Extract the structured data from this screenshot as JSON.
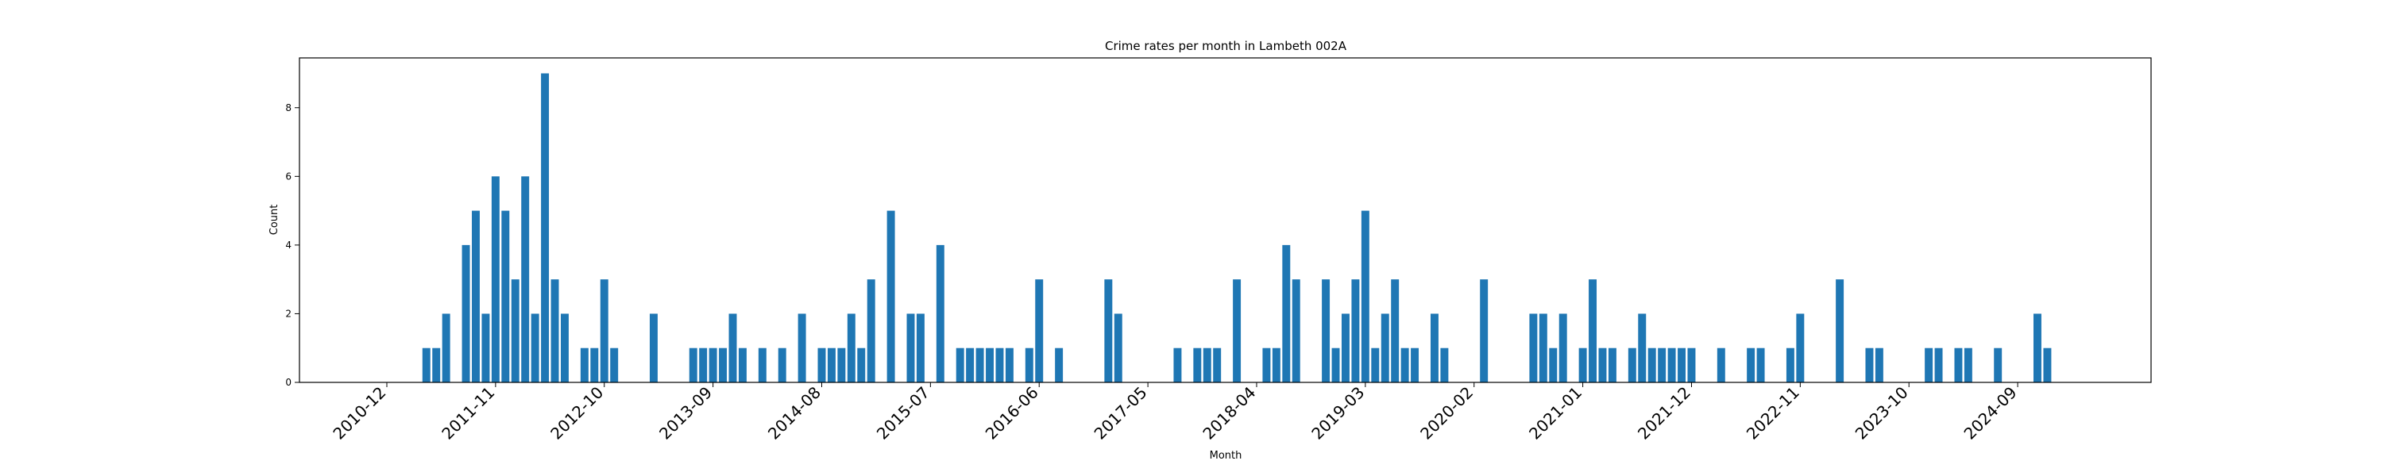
{
  "chart_data": {
    "type": "bar",
    "title": "Crime rates per month in Lambeth 002A",
    "xlabel": "Month",
    "ylabel": "Count",
    "ylim": [
      0,
      9.45
    ],
    "y_ticks": [
      0,
      2,
      4,
      6,
      8
    ],
    "x_ticks": [
      "2010-12",
      "2011-11",
      "2012-10",
      "2013-09",
      "2014-08",
      "2015-07",
      "2016-06",
      "2017-05",
      "2018-04",
      "2019-03",
      "2020-02",
      "2021-01",
      "2021-12",
      "2022-11",
      "2023-10",
      "2024-09"
    ],
    "grid": false,
    "color": "#1f77b4",
    "categories": [
      "2011-04",
      "2011-05",
      "2011-06",
      "2011-08",
      "2011-09",
      "2011-10",
      "2011-11",
      "2011-12",
      "2012-01",
      "2012-02",
      "2012-03",
      "2012-04",
      "2012-05",
      "2012-06",
      "2012-08",
      "2012-09",
      "2012-10",
      "2012-11",
      "2013-03",
      "2013-07",
      "2013-08",
      "2013-09",
      "2013-10",
      "2013-11",
      "2013-12",
      "2014-02",
      "2014-04",
      "2014-06",
      "2014-08",
      "2014-09",
      "2014-10",
      "2014-11",
      "2014-12",
      "2015-01",
      "2015-03",
      "2015-05",
      "2015-06",
      "2015-08",
      "2015-10",
      "2015-11",
      "2015-12",
      "2016-01",
      "2016-02",
      "2016-03",
      "2016-05",
      "2016-06",
      "2016-08",
      "2017-01",
      "2017-02",
      "2017-08",
      "2017-10",
      "2017-11",
      "2017-12",
      "2018-02",
      "2018-05",
      "2018-06",
      "2018-07",
      "2018-08",
      "2018-11",
      "2018-12",
      "2019-01",
      "2019-02",
      "2019-03",
      "2019-04",
      "2019-05",
      "2019-06",
      "2019-07",
      "2019-08",
      "2019-10",
      "2019-11",
      "2020-03",
      "2020-08",
      "2020-09",
      "2020-10",
      "2020-11",
      "2021-01",
      "2021-02",
      "2021-03",
      "2021-04",
      "2021-06",
      "2021-07",
      "2021-08",
      "2021-09",
      "2021-10",
      "2021-11",
      "2021-12",
      "2022-03",
      "2022-06",
      "2022-07",
      "2022-10",
      "2022-11",
      "2023-03",
      "2023-06",
      "2023-07",
      "2023-12",
      "2024-01",
      "2024-03",
      "2024-04",
      "2024-07",
      "2024-11",
      "2024-12"
    ],
    "values": [
      1,
      1,
      2,
      4,
      5,
      2,
      6,
      5,
      3,
      6,
      2,
      9,
      3,
      2,
      1,
      1,
      3,
      1,
      2,
      1,
      1,
      1,
      1,
      2,
      1,
      1,
      1,
      2,
      1,
      1,
      1,
      2,
      1,
      3,
      5,
      2,
      2,
      4,
      1,
      1,
      1,
      1,
      1,
      1,
      1,
      3,
      1,
      3,
      2,
      1,
      1,
      1,
      1,
      3,
      1,
      1,
      4,
      3,
      3,
      1,
      2,
      3,
      5,
      1,
      2,
      3,
      1,
      1,
      2,
      1,
      3,
      2,
      2,
      1,
      2,
      1,
      3,
      1,
      1,
      1,
      2,
      1,
      1,
      1,
      1,
      1,
      1,
      1,
      1,
      1,
      2,
      3,
      1,
      1,
      1,
      1,
      1,
      1,
      1,
      2,
      1
    ]
  }
}
